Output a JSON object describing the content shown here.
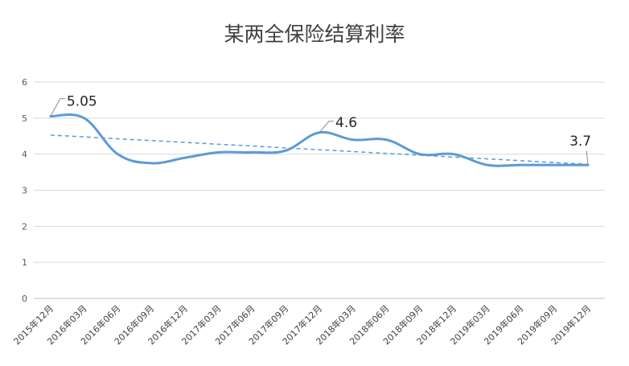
{
  "chart_data": {
    "type": "line",
    "title": "某两全保险结算利率",
    "categories": [
      "2015年12月",
      "2016年03月",
      "2016年06月",
      "2016年09月",
      "2016年12月",
      "2017年03月",
      "2017年06月",
      "2017年09月",
      "2017年12月",
      "2018年03月",
      "2018年06月",
      "2018年09月",
      "2018年12月",
      "2019年03月",
      "2019年06月",
      "2019年09月",
      "2019年12月"
    ],
    "series": [
      {
        "values": [
          5.05,
          5.0,
          4.0,
          3.75,
          3.9,
          4.05,
          4.05,
          4.1,
          4.6,
          4.4,
          4.4,
          4.0,
          4.0,
          3.7,
          3.7,
          3.7,
          3.7
        ]
      }
    ],
    "trendline": {
      "type": "linear",
      "style": "dashed"
    },
    "data_labels": [
      {
        "index": 0,
        "text": "5.05"
      },
      {
        "index": 8,
        "text": "4.6"
      },
      {
        "index": 16,
        "text": "3.7"
      }
    ],
    "yticks": [
      "0",
      "1",
      "2",
      "3",
      "4",
      "5",
      "6"
    ],
    "ylim": [
      0,
      6
    ],
    "grid": true,
    "legend": "none",
    "colors": {
      "line": "#5B9BD5",
      "trend": "#5B9BD5",
      "grid": "#D9D9D9",
      "axis": "#BFBFBF"
    }
  }
}
